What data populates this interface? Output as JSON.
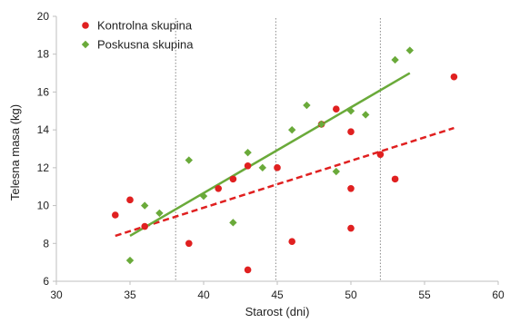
{
  "chart_data": {
    "type": "scatter",
    "xlabel": "Starost (dni)",
    "ylabel": "Telesna masa (kg)",
    "xlim": [
      30,
      60
    ],
    "ylim": [
      6,
      20
    ],
    "xticks": [
      30,
      35,
      40,
      45,
      50,
      55,
      60
    ],
    "yticks": [
      6,
      8,
      10,
      12,
      14,
      16,
      18,
      20
    ],
    "grid": false,
    "legend_position": "top-left",
    "vertical_reference_lines": [
      38.1,
      44.9,
      52
    ],
    "series": [
      {
        "name": "Kontrolna skupina",
        "marker": "circle",
        "color": "#e02020",
        "points": [
          [
            34,
            9.5
          ],
          [
            35,
            10.3
          ],
          [
            36,
            8.9
          ],
          [
            39,
            8.0
          ],
          [
            41,
            10.9
          ],
          [
            42,
            11.4
          ],
          [
            43,
            12.1
          ],
          [
            43,
            6.6
          ],
          [
            45,
            12.0
          ],
          [
            46,
            8.1
          ],
          [
            48,
            14.3
          ],
          [
            49,
            15.1
          ],
          [
            50,
            13.9
          ],
          [
            50,
            10.9
          ],
          [
            50,
            8.8
          ],
          [
            52,
            12.7
          ],
          [
            53,
            11.4
          ],
          [
            57,
            16.8
          ]
        ],
        "trendline": {
          "style": "dashed",
          "from": [
            34,
            8.4
          ],
          "to": [
            57,
            14.1
          ]
        }
      },
      {
        "name": "Poskusna skupina",
        "marker": "diamond",
        "color": "#6aaa3a",
        "points": [
          [
            35,
            7.1
          ],
          [
            36,
            10.0
          ],
          [
            37,
            9.6
          ],
          [
            39,
            12.4
          ],
          [
            40,
            10.5
          ],
          [
            42,
            9.1
          ],
          [
            43,
            12.8
          ],
          [
            44,
            12.0
          ],
          [
            46,
            14.0
          ],
          [
            47,
            15.3
          ],
          [
            48,
            14.3
          ],
          [
            49,
            11.8
          ],
          [
            50,
            15.0
          ],
          [
            51,
            14.8
          ],
          [
            53,
            17.7
          ],
          [
            54,
            18.2
          ]
        ],
        "trendline": {
          "style": "solid",
          "from": [
            35,
            8.4
          ],
          "to": [
            54,
            17.0
          ]
        }
      }
    ]
  }
}
